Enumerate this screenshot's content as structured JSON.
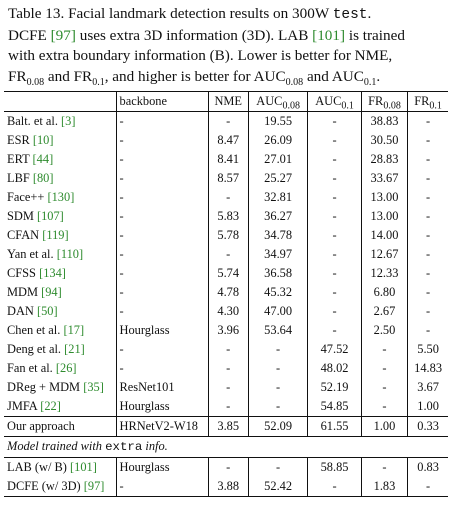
{
  "caption": {
    "line1": [
      "Table 13. Facial landmark detection results on 300W ",
      "test",
      "."
    ],
    "line2": [
      "DCFE ",
      "[97]",
      " uses extra 3D information (3D). LAB ",
      "[101]",
      " is trained"
    ],
    "line3": "with extra boundary information (B). Lower is better for NME,",
    "line4": [
      "FR",
      "0.08",
      " and FR",
      "0.1",
      ", and higher is better for AUC",
      "0.08",
      " and AUC",
      "0.1",
      "."
    ]
  },
  "table": {
    "headers": {
      "method": "",
      "backbone": "backbone",
      "nme": "NME",
      "auc008": [
        "AUC",
        "0.08"
      ],
      "auc01": [
        "AUC",
        "0.1"
      ],
      "fr008": [
        "FR",
        "0.08"
      ],
      "fr01": [
        "FR",
        "0.1"
      ]
    },
    "rows": [
      {
        "name": "Balt. et al.",
        "ref": "[3]",
        "backbone": "-",
        "nme": "-",
        "auc008": "19.55",
        "auc01": "-",
        "fr008": "38.83",
        "fr01": "-"
      },
      {
        "name": "ESR",
        "ref": "[10]",
        "backbone": "-",
        "nme": "8.47",
        "auc008": "26.09",
        "auc01": "-",
        "fr008": "30.50",
        "fr01": "-"
      },
      {
        "name": "ERT",
        "ref": "[44]",
        "backbone": "-",
        "nme": "8.41",
        "auc008": "27.01",
        "auc01": "-",
        "fr008": "28.83",
        "fr01": "-"
      },
      {
        "name": "LBF",
        "ref": "[80]",
        "backbone": "-",
        "nme": "8.57",
        "auc008": "25.27",
        "auc01": "-",
        "fr008": "33.67",
        "fr01": "-"
      },
      {
        "name": "Face++",
        "ref": "[130]",
        "backbone": "-",
        "nme": "-",
        "auc008": "32.81",
        "auc01": "-",
        "fr008": "13.00",
        "fr01": "-"
      },
      {
        "name": "SDM",
        "ref": "[107]",
        "backbone": "-",
        "nme": "5.83",
        "auc008": "36.27",
        "auc01": "-",
        "fr008": "13.00",
        "fr01": "-"
      },
      {
        "name": "CFAN",
        "ref": "[119]",
        "backbone": "-",
        "nme": "5.78",
        "auc008": "34.78",
        "auc01": "-",
        "fr008": "14.00",
        "fr01": "-"
      },
      {
        "name": "Yan et al.",
        "ref": "[110]",
        "backbone": "-",
        "nme": "-",
        "auc008": "34.97",
        "auc01": "-",
        "fr008": "12.67",
        "fr01": "-"
      },
      {
        "name": "CFSS",
        "ref": "[134]",
        "backbone": "-",
        "nme": "5.74",
        "auc008": "36.58",
        "auc01": "-",
        "fr008": "12.33",
        "fr01": "-"
      },
      {
        "name": "MDM",
        "ref": "[94]",
        "backbone": "-",
        "nme": "4.78",
        "auc008": "45.32",
        "auc01": "-",
        "fr008": "6.80",
        "fr01": "-"
      },
      {
        "name": "DAN",
        "ref": "[50]",
        "backbone": "-",
        "nme": "4.30",
        "auc008": "47.00",
        "auc01": "-",
        "fr008": "2.67",
        "fr01": "-"
      },
      {
        "name": "Chen et al.",
        "ref": "[17]",
        "backbone": "Hourglass",
        "nme": "3.96",
        "auc008": "53.64",
        "auc01": "-",
        "fr008": "2.50",
        "fr01": "-",
        "bold": [
          "auc008"
        ]
      },
      {
        "name": "Deng et al.",
        "ref": "[21]",
        "backbone": "-",
        "nme": "-",
        "auc008": "-",
        "auc01": "47.52",
        "fr008": "-",
        "fr01": "5.50"
      },
      {
        "name": "Fan et al.",
        "ref": "[26]",
        "backbone": "-",
        "nme": "-",
        "auc008": "-",
        "auc01": "48.02",
        "fr008": "-",
        "fr01": "14.83"
      },
      {
        "name": "DReg + MDM",
        "ref": "[35]",
        "backbone": "ResNet101",
        "nme": "-",
        "auc008": "-",
        "auc01": "52.19",
        "fr008": "-",
        "fr01": "3.67"
      },
      {
        "name": "JMFA",
        "ref": "[22]",
        "backbone": "Hourglass",
        "nme": "-",
        "auc008": "-",
        "auc01": "54.85",
        "fr008": "-",
        "fr01": "1.00"
      }
    ],
    "ours": {
      "name": "Our approach",
      "backbone": "HRNetV2-W18",
      "nme": "3.85",
      "auc008": "52.09",
      "auc01": "61.55",
      "fr008": "1.00",
      "fr01": "0.33",
      "bold": [
        "nme",
        "auc01",
        "fr008",
        "fr01"
      ]
    },
    "extra_section": {
      "label_before": "Model trained with ",
      "label_mono": "extra",
      "label_after": " info."
    },
    "extra_rows": [
      {
        "name": "LAB (w/ B)",
        "ref": "[101]",
        "backbone": "Hourglass",
        "nme": "-",
        "auc008": "-",
        "auc01": "58.85",
        "fr008": "-",
        "fr01": "0.83"
      },
      {
        "name": "DCFE (w/ 3D)",
        "ref": "[97]",
        "backbone": "-",
        "nme": "3.88",
        "auc008": "52.42",
        "auc01": "-",
        "fr008": "1.83",
        "fr01": "-"
      }
    ]
  },
  "colors": {
    "reference_link": "#2e8b2e",
    "text": "#111111"
  }
}
